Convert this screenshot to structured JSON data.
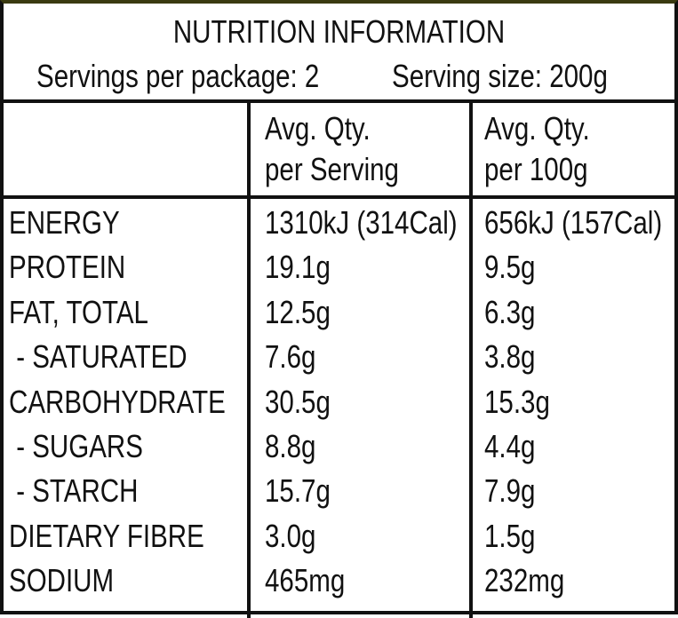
{
  "title": "NUTRITION INFORMATION",
  "servings_per_package": "Servings per package: 2",
  "serving_size": "Serving size: 200g",
  "table": {
    "header": [
      "Avg. Qty.\nper Serving",
      "Avg. Qty.\nper 100g"
    ],
    "rows": [
      [
        "ENERGY",
        "1310kJ (314Cal)",
        "656kJ (157Cal)"
      ],
      [
        "PROTEIN",
        "19.1g",
        "9.5g"
      ],
      [
        "FAT, TOTAL",
        "12.5g",
        "6.3g"
      ],
      [
        " - SATURATED",
        "7.6g",
        "3.8g"
      ],
      [
        "CARBOHYDRATE",
        "30.5g",
        "15.3g"
      ],
      [
        " - SUGARS",
        "8.8g",
        "4.4g"
      ],
      [
        " - STARCH",
        "15.7g",
        "7.9g"
      ],
      [
        "DIETARY FIBRE",
        "3.0g",
        "1.5g"
      ],
      [
        "SODIUM",
        "465mg",
        "232mg"
      ]
    ]
  }
}
